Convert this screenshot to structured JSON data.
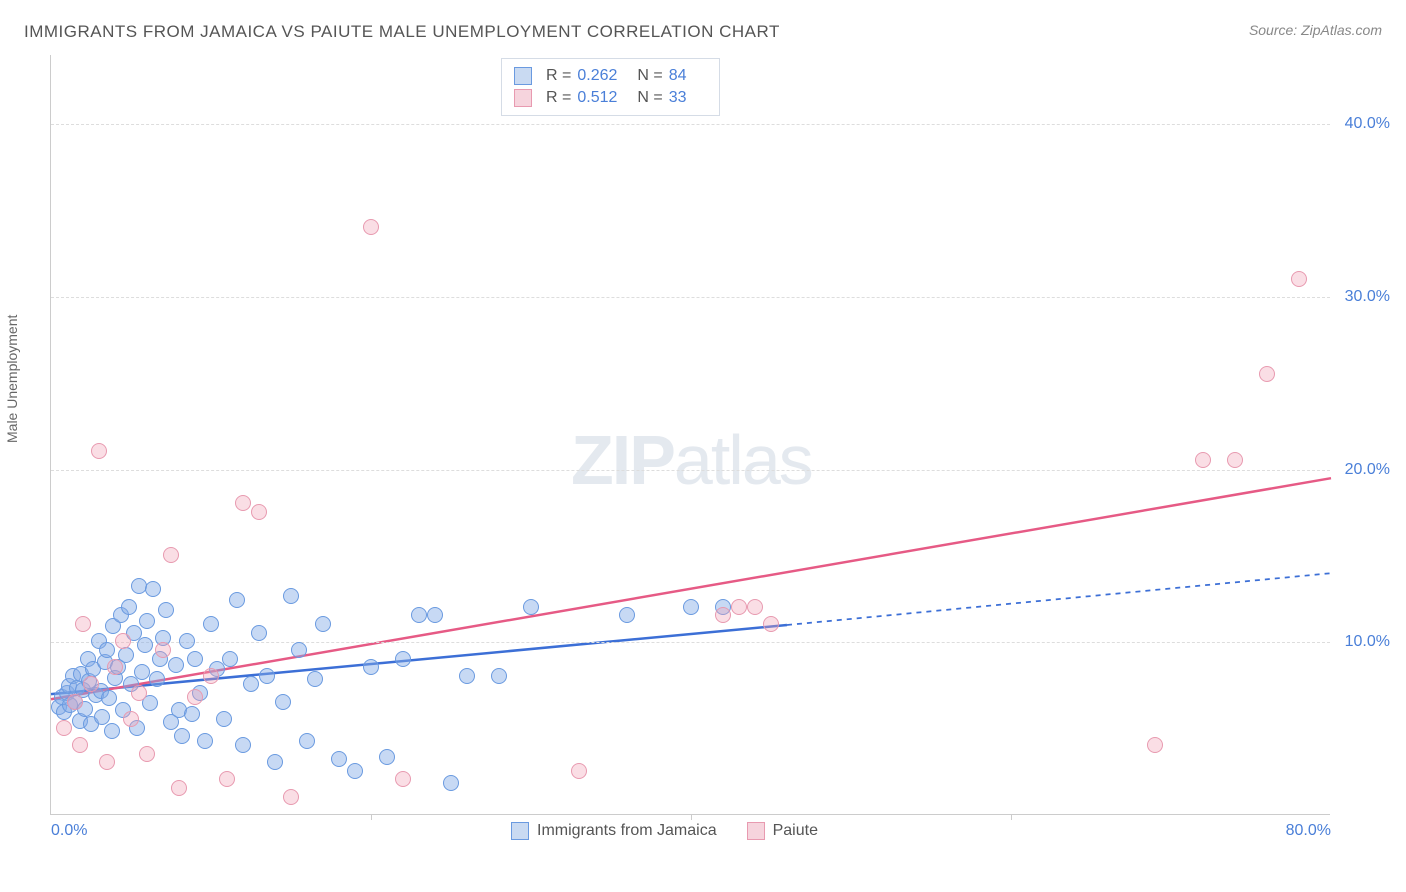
{
  "title": "IMMIGRANTS FROM JAMAICA VS PAIUTE MALE UNEMPLOYMENT CORRELATION CHART",
  "source": "Source: ZipAtlas.com",
  "watermark_a": "ZIP",
  "watermark_b": "atlas",
  "chart": {
    "type": "scatter",
    "y_axis_label": "Male Unemployment",
    "background_color": "#ffffff",
    "grid_color": "#dddddd",
    "axis_color": "#cccccc",
    "tick_label_color": "#4a7fd8",
    "xlim": [
      0,
      80
    ],
    "ylim": [
      0,
      44
    ],
    "x_ticks": [
      0,
      20,
      40,
      60,
      80
    ],
    "x_tick_labels": [
      "0.0%",
      "",
      "",
      "",
      "80.0%"
    ],
    "y_ticks": [
      10,
      20,
      30,
      40
    ],
    "y_tick_labels": [
      "10.0%",
      "20.0%",
      "30.0%",
      "40.0%"
    ],
    "marker_radius": 8,
    "tick_fontsize": 16,
    "title_fontsize": 17,
    "series": [
      {
        "name": "Immigrants from Jamaica",
        "color_fill": "rgba(130,170,230,0.45)",
        "color_stroke": "#6a9ae0",
        "swatch_fill": "#c9daf2",
        "swatch_border": "#6a9ae0",
        "R": "0.262",
        "N": "84",
        "trend": {
          "x1": 0,
          "y1": 7.0,
          "x2": 46,
          "y2": 11.0,
          "x2_dash": 80,
          "y2_dash": 14.0,
          "color": "#3c6fd6",
          "width": 2.5,
          "dash": "5,5"
        },
        "points": [
          [
            0.5,
            6.2
          ],
          [
            0.7,
            6.8
          ],
          [
            0.8,
            5.9
          ],
          [
            1.0,
            7.0
          ],
          [
            1.1,
            7.4
          ],
          [
            1.2,
            6.3
          ],
          [
            1.4,
            8.0
          ],
          [
            1.5,
            6.5
          ],
          [
            1.6,
            7.3
          ],
          [
            1.8,
            5.4
          ],
          [
            1.9,
            8.1
          ],
          [
            2.0,
            7.2
          ],
          [
            2.1,
            6.1
          ],
          [
            2.3,
            9.0
          ],
          [
            2.4,
            7.7
          ],
          [
            2.5,
            5.2
          ],
          [
            2.6,
            8.4
          ],
          [
            2.8,
            6.9
          ],
          [
            3.0,
            10.0
          ],
          [
            3.1,
            7.1
          ],
          [
            3.2,
            5.6
          ],
          [
            3.4,
            8.8
          ],
          [
            3.5,
            9.5
          ],
          [
            3.6,
            6.7
          ],
          [
            3.8,
            4.8
          ],
          [
            3.9,
            10.9
          ],
          [
            4.0,
            7.9
          ],
          [
            4.2,
            8.5
          ],
          [
            4.4,
            11.5
          ],
          [
            4.5,
            6.0
          ],
          [
            4.7,
            9.2
          ],
          [
            4.9,
            12.0
          ],
          [
            5.0,
            7.5
          ],
          [
            5.2,
            10.5
          ],
          [
            5.4,
            5.0
          ],
          [
            5.5,
            13.2
          ],
          [
            5.7,
            8.2
          ],
          [
            5.9,
            9.8
          ],
          [
            6.0,
            11.2
          ],
          [
            6.2,
            6.4
          ],
          [
            6.4,
            13.0
          ],
          [
            6.6,
            7.8
          ],
          [
            6.8,
            9.0
          ],
          [
            7.0,
            10.2
          ],
          [
            7.2,
            11.8
          ],
          [
            7.5,
            5.3
          ],
          [
            7.8,
            8.6
          ],
          [
            8.0,
            6.0
          ],
          [
            8.2,
            4.5
          ],
          [
            8.5,
            10.0
          ],
          [
            8.8,
            5.8
          ],
          [
            9.0,
            9.0
          ],
          [
            9.3,
            7.0
          ],
          [
            9.6,
            4.2
          ],
          [
            10.0,
            11.0
          ],
          [
            10.4,
            8.4
          ],
          [
            10.8,
            5.5
          ],
          [
            11.2,
            9.0
          ],
          [
            11.6,
            12.4
          ],
          [
            12.0,
            4.0
          ],
          [
            12.5,
            7.5
          ],
          [
            13.0,
            10.5
          ],
          [
            13.5,
            8.0
          ],
          [
            14.0,
            3.0
          ],
          [
            14.5,
            6.5
          ],
          [
            15.0,
            12.6
          ],
          [
            15.5,
            9.5
          ],
          [
            16.0,
            4.2
          ],
          [
            16.5,
            7.8
          ],
          [
            17.0,
            11.0
          ],
          [
            18.0,
            3.2
          ],
          [
            19.0,
            2.5
          ],
          [
            20.0,
            8.5
          ],
          [
            21.0,
            3.3
          ],
          [
            22.0,
            9.0
          ],
          [
            23.0,
            11.5
          ],
          [
            24.0,
            11.5
          ],
          [
            25.0,
            1.8
          ],
          [
            26.0,
            8.0
          ],
          [
            28.0,
            8.0
          ],
          [
            30.0,
            12.0
          ],
          [
            36.0,
            11.5
          ],
          [
            40.0,
            12.0
          ],
          [
            42.0,
            12.0
          ]
        ]
      },
      {
        "name": "Paiute",
        "color_fill": "rgba(240,160,180,0.35)",
        "color_stroke": "#e89ab0",
        "swatch_fill": "#f6d4dd",
        "swatch_border": "#e89ab0",
        "R": "0.512",
        "N": "33",
        "trend": {
          "x1": 0,
          "y1": 6.7,
          "x2": 80,
          "y2": 19.5,
          "color": "#e65a85",
          "width": 2.5
        },
        "points": [
          [
            0.8,
            5.0
          ],
          [
            1.5,
            6.5
          ],
          [
            1.8,
            4.0
          ],
          [
            2.0,
            11.0
          ],
          [
            2.5,
            7.5
          ],
          [
            3.0,
            21.0
          ],
          [
            3.5,
            3.0
          ],
          [
            4.0,
            8.5
          ],
          [
            4.5,
            10.0
          ],
          [
            5.0,
            5.5
          ],
          [
            5.5,
            7.0
          ],
          [
            6.0,
            3.5
          ],
          [
            7.0,
            9.5
          ],
          [
            7.5,
            15.0
          ],
          [
            8.0,
            1.5
          ],
          [
            9.0,
            6.8
          ],
          [
            10.0,
            8.0
          ],
          [
            11.0,
            2.0
          ],
          [
            12.0,
            18.0
          ],
          [
            13.0,
            17.5
          ],
          [
            15.0,
            1.0
          ],
          [
            20.0,
            34.0
          ],
          [
            22.0,
            2.0
          ],
          [
            33.0,
            2.5
          ],
          [
            42.0,
            11.5
          ],
          [
            43.0,
            12.0
          ],
          [
            44.0,
            12.0
          ],
          [
            45.0,
            11.0
          ],
          [
            69.0,
            4.0
          ],
          [
            72.0,
            20.5
          ],
          [
            74.0,
            20.5
          ],
          [
            76.0,
            25.5
          ],
          [
            78.0,
            31.0
          ]
        ]
      }
    ]
  },
  "stats_box": {
    "R_label": "R =",
    "N_label": "N ="
  }
}
